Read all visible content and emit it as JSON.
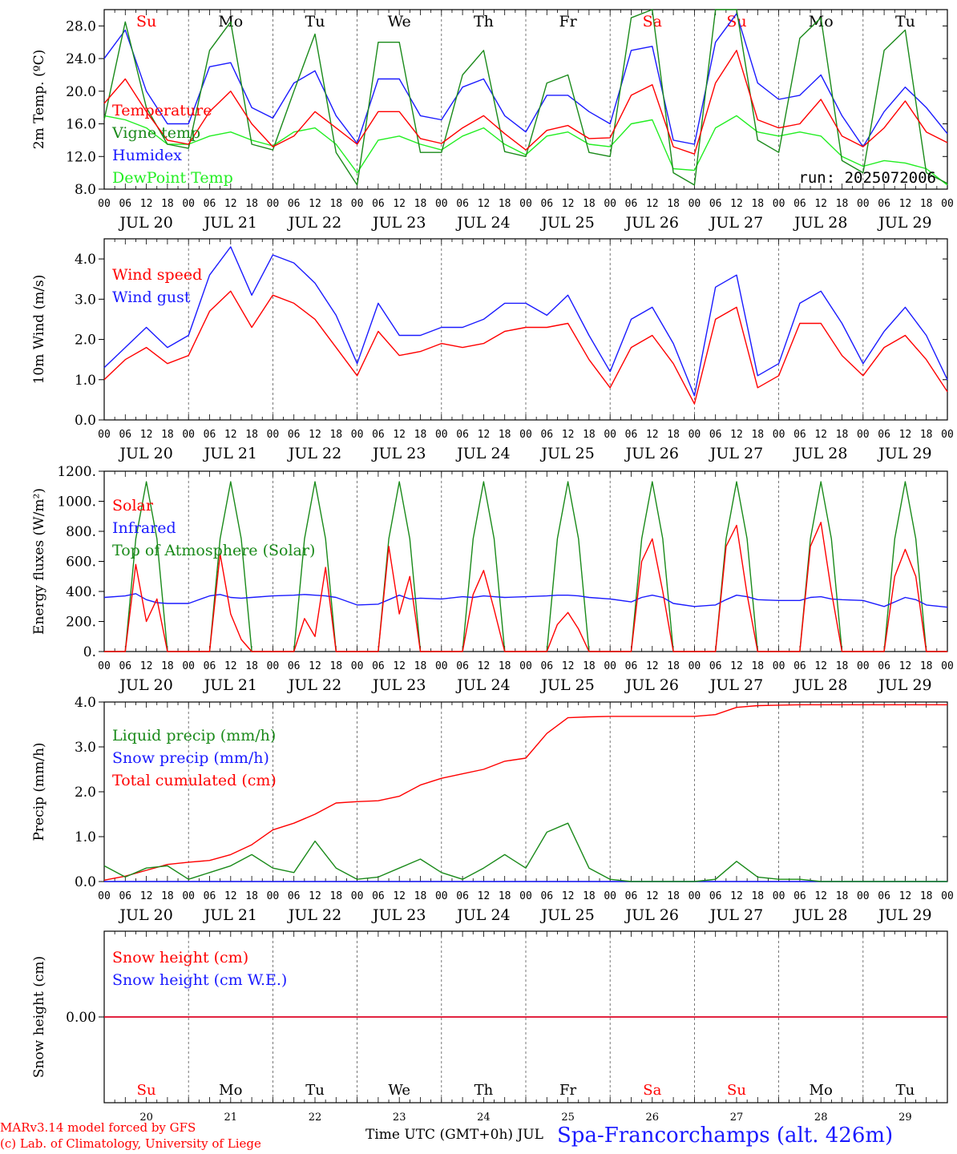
{
  "colors": {
    "red": "#ff0000",
    "green": "#1a8a1a",
    "blue": "#1a1aff",
    "lightgreen": "#22ee22",
    "axis": "#000000",
    "grid": "#555555"
  },
  "footer": {
    "model_line1": "MARv3.14 model forced by GFS",
    "model_line2": "(c) Lab. of Climatology, University of Liege",
    "time_label": "Time UTC (GMT+0h) JUL",
    "station": "Spa-Francorchamps (alt. 426m)"
  },
  "days": [
    {
      "date": "JUL 20",
      "num": "20",
      "weekday": "Su",
      "weekend": true
    },
    {
      "date": "JUL 21",
      "num": "21",
      "weekday": "Mo",
      "weekend": false
    },
    {
      "date": "JUL 22",
      "num": "22",
      "weekday": "Tu",
      "weekend": false
    },
    {
      "date": "JUL 23",
      "num": "23",
      "weekday": "We",
      "weekend": false
    },
    {
      "date": "JUL 24",
      "num": "24",
      "weekday": "Th",
      "weekend": false
    },
    {
      "date": "JUL 25",
      "num": "25",
      "weekday": "Fr",
      "weekend": false
    },
    {
      "date": "JUL 26",
      "num": "26",
      "weekday": "Sa",
      "weekend": true
    },
    {
      "date": "JUL 27",
      "num": "27",
      "weekday": "Su",
      "weekend": true
    },
    {
      "date": "JUL 28",
      "num": "28",
      "weekday": "Mo",
      "weekend": false
    },
    {
      "date": "JUL 29",
      "num": "29",
      "weekday": "Tu",
      "weekend": false
    }
  ],
  "hour_ticks": [
    "00",
    "06",
    "12",
    "18"
  ],
  "chart_data": [
    {
      "type": "line",
      "id": "temp",
      "ylabel": "2m Temp. (ºC)",
      "ylim": [
        8,
        30
      ],
      "yticks": [
        "8.0",
        "12.0",
        "16.0",
        "20.0",
        "24.0",
        "28.0"
      ],
      "annotation": "run: 2025072006",
      "x_hours": [
        0,
        6,
        12,
        18,
        24,
        30,
        36,
        42,
        48,
        54,
        60,
        66,
        72,
        78,
        84,
        90,
        96,
        102,
        108,
        114,
        120,
        126,
        132,
        138,
        144,
        150,
        156,
        162,
        168,
        174,
        180,
        186,
        192,
        198,
        204,
        210,
        216,
        222,
        228,
        234,
        240
      ],
      "series": [
        {
          "name": "Temperature",
          "color": "red",
          "values": [
            18.5,
            21.5,
            17.5,
            14,
            13.5,
            17.5,
            20,
            16,
            13.2,
            14.5,
            17.5,
            15.5,
            13.5,
            17.5,
            17.5,
            14.2,
            13.6,
            15.5,
            17,
            14.8,
            12.8,
            15.2,
            15.8,
            14.2,
            14.3,
            19.5,
            20.8,
            13.2,
            12.3,
            21,
            25,
            16.5,
            15.5,
            16,
            19,
            14.5,
            13.2,
            15.5,
            18.8,
            15,
            13.7
          ]
        },
        {
          "name": "Vigne temp",
          "color": "green",
          "values": [
            16.5,
            28.5,
            18,
            13.5,
            13,
            25,
            28.5,
            13.5,
            12.8,
            20,
            27,
            12.5,
            8.5,
            26,
            26,
            12.5,
            12.5,
            22,
            25,
            12.6,
            12,
            21,
            22,
            12.5,
            12,
            29,
            30,
            10,
            8.5,
            30,
            30,
            14,
            12.5,
            26.5,
            29,
            11.5,
            10,
            25,
            27.5,
            10,
            8.7
          ]
        },
        {
          "name": "Humidex",
          "color": "blue",
          "values": [
            24,
            27.5,
            20,
            16,
            16,
            23,
            23.5,
            18,
            16.7,
            21,
            22.5,
            17,
            13.6,
            21.5,
            21.5,
            17,
            16.5,
            20.5,
            21.5,
            17,
            15,
            19.5,
            19.5,
            17.5,
            16,
            25,
            25.5,
            14,
            13.5,
            26,
            29.5,
            21,
            19,
            19.5,
            22,
            17,
            13.2,
            17.5,
            20.5,
            18,
            14.8
          ]
        },
        {
          "name": "DewPoint Temp",
          "color": "lightgreen",
          "values": [
            17,
            16.5,
            15.5,
            13.5,
            13.5,
            14.5,
            15,
            14,
            13.3,
            15,
            15.5,
            13.5,
            10,
            14,
            14.5,
            13.5,
            12.8,
            14.5,
            15.5,
            13.5,
            12.2,
            14.5,
            15,
            13.5,
            13.2,
            16,
            16.5,
            10.5,
            10.3,
            15.5,
            17,
            15,
            14.5,
            15,
            14.5,
            12,
            10.8,
            11.5,
            11.2,
            10.5,
            8.5
          ]
        }
      ]
    },
    {
      "type": "line",
      "id": "wind",
      "ylabel": "10m Wind (m/s)",
      "ylim": [
        0,
        4.5
      ],
      "yticks": [
        "0.0",
        "1.0",
        "2.0",
        "3.0",
        "4.0"
      ],
      "x_hours": [
        0,
        6,
        12,
        18,
        24,
        30,
        36,
        42,
        48,
        54,
        60,
        66,
        72,
        78,
        84,
        90,
        96,
        102,
        108,
        114,
        120,
        126,
        132,
        138,
        144,
        150,
        156,
        162,
        168,
        174,
        180,
        186,
        192,
        198,
        204,
        210,
        216,
        222,
        228,
        234,
        240
      ],
      "series": [
        {
          "name": "Wind speed",
          "color": "red",
          "values": [
            1,
            1.5,
            1.8,
            1.4,
            1.6,
            2.7,
            3.2,
            2.3,
            3.1,
            2.9,
            2.5,
            1.8,
            1.1,
            2.2,
            1.6,
            1.7,
            1.9,
            1.8,
            1.9,
            2.2,
            2.3,
            2.3,
            2.4,
            1.5,
            0.8,
            1.8,
            2.1,
            1.4,
            0.4,
            2.5,
            2.8,
            0.8,
            1.1,
            2.4,
            2.4,
            1.6,
            1.1,
            1.8,
            2.1,
            1.5,
            0.7
          ]
        },
        {
          "name": "Wind gust",
          "color": "blue",
          "values": [
            1.3,
            1.8,
            2.3,
            1.8,
            2.1,
            3.6,
            4.3,
            3.1,
            4.1,
            3.9,
            3.4,
            2.6,
            1.4,
            2.9,
            2.1,
            2.1,
            2.3,
            2.3,
            2.5,
            2.9,
            2.9,
            2.6,
            3.1,
            2.1,
            1.2,
            2.5,
            2.8,
            1.9,
            0.6,
            3.3,
            3.6,
            1.1,
            1.4,
            2.9,
            3.2,
            2.4,
            1.4,
            2.2,
            2.8,
            2.1,
            1
          ]
        }
      ]
    },
    {
      "type": "line",
      "id": "energy",
      "ylabel": "Energy fluxes (W/m²)",
      "ylim": [
        0,
        1200
      ],
      "yticks": [
        "0.",
        "200.",
        "400.",
        "600.",
        "800.",
        "1000.",
        "1200."
      ],
      "x_hours": [
        0,
        6,
        9,
        12,
        15,
        18,
        24,
        30,
        33,
        36,
        39,
        42,
        48,
        54,
        57,
        60,
        63,
        66,
        72,
        78,
        81,
        84,
        87,
        90,
        96,
        102,
        105,
        108,
        111,
        114,
        120,
        126,
        129,
        132,
        135,
        138,
        144,
        150,
        153,
        156,
        159,
        162,
        168,
        174,
        177,
        180,
        183,
        186,
        192,
        198,
        201,
        204,
        207,
        210,
        216,
        222,
        225,
        228,
        231,
        234,
        240
      ],
      "series": [
        {
          "name": "Solar",
          "color": "red",
          "values": [
            0,
            0,
            580,
            200,
            350,
            0,
            0,
            0,
            650,
            250,
            80,
            0,
            0,
            0,
            220,
            100,
            560,
            0,
            0,
            0,
            700,
            250,
            500,
            0,
            0,
            0,
            380,
            540,
            280,
            0,
            0,
            0,
            180,
            260,
            150,
            0,
            0,
            0,
            600,
            750,
            400,
            0,
            0,
            0,
            700,
            840,
            380,
            0,
            0,
            0,
            700,
            860,
            400,
            0,
            0,
            0,
            500,
            680,
            500,
            0,
            0
          ]
        },
        {
          "name": "Infrared",
          "color": "blue",
          "values": [
            360,
            370,
            385,
            345,
            325,
            320,
            320,
            370,
            380,
            360,
            355,
            360,
            370,
            375,
            380,
            375,
            370,
            360,
            310,
            315,
            345,
            375,
            350,
            355,
            350,
            365,
            360,
            370,
            365,
            360,
            365,
            370,
            375,
            375,
            370,
            360,
            350,
            330,
            360,
            375,
            360,
            320,
            300,
            310,
            345,
            375,
            365,
            345,
            340,
            340,
            360,
            365,
            350,
            345,
            340,
            300,
            330,
            360,
            345,
            310,
            295
          ]
        },
        {
          "name": "Top of Atmosphere (Solar)",
          "color": "green",
          "values": [
            0,
            0,
            750,
            1130,
            750,
            0,
            0,
            0,
            750,
            1130,
            750,
            0,
            0,
            0,
            750,
            1130,
            750,
            0,
            0,
            0,
            750,
            1130,
            750,
            0,
            0,
            0,
            750,
            1130,
            750,
            0,
            0,
            0,
            750,
            1130,
            750,
            0,
            0,
            0,
            750,
            1130,
            750,
            0,
            0,
            0,
            750,
            1130,
            750,
            0,
            0,
            0,
            750,
            1130,
            750,
            0,
            0,
            0,
            750,
            1130,
            750,
            0,
            0
          ]
        }
      ]
    },
    {
      "type": "line",
      "id": "precip",
      "ylabel": "Precip (mm/h)",
      "ylim": [
        0,
        4
      ],
      "yticks": [
        "0.0",
        "1.0",
        "2.0",
        "3.0",
        "4.0"
      ],
      "x_hours": [
        0,
        6,
        12,
        18,
        24,
        30,
        36,
        42,
        48,
        54,
        60,
        66,
        72,
        78,
        84,
        90,
        96,
        102,
        108,
        114,
        120,
        126,
        132,
        138,
        144,
        150,
        156,
        162,
        168,
        174,
        180,
        186,
        192,
        198,
        204,
        210,
        216,
        222,
        228,
        234,
        240
      ],
      "series": [
        {
          "name": "Liquid precip (mm/h)",
          "color": "green",
          "values": [
            0.35,
            0.1,
            0.3,
            0.35,
            0.05,
            0.2,
            0.35,
            0.6,
            0.3,
            0.2,
            0.9,
            0.3,
            0.05,
            0.1,
            0.3,
            0.5,
            0.2,
            0.05,
            0.3,
            0.6,
            0.3,
            1.1,
            1.3,
            0.3,
            0.05,
            0,
            0,
            0,
            0,
            0.05,
            0.45,
            0.1,
            0.05,
            0.05,
            0,
            0,
            0,
            0,
            0,
            0,
            0
          ]
        },
        {
          "name": "Snow precip (mm/h)",
          "color": "blue",
          "values": [
            0,
            0,
            0,
            0,
            0,
            0,
            0,
            0,
            0,
            0,
            0,
            0,
            0,
            0,
            0,
            0,
            0,
            0,
            0,
            0,
            0,
            0,
            0,
            0,
            0,
            0,
            0,
            0,
            0,
            0,
            0,
            0,
            0,
            0,
            0,
            0,
            0,
            0,
            0,
            0,
            0
          ]
        },
        {
          "name": "Total cumulated (cm)",
          "color": "red",
          "values": [
            0.03,
            0.12,
            0.25,
            0.38,
            0.43,
            0.47,
            0.6,
            0.82,
            1.15,
            1.3,
            1.5,
            1.75,
            1.78,
            1.8,
            1.9,
            2.15,
            2.3,
            2.4,
            2.5,
            2.68,
            2.75,
            3.3,
            3.65,
            3.67,
            3.68,
            3.68,
            3.68,
            3.68,
            3.68,
            3.72,
            3.88,
            3.92,
            3.93,
            3.94,
            3.94,
            3.94,
            3.94,
            3.94,
            3.94,
            3.94,
            3.94
          ]
        }
      ]
    },
    {
      "type": "line",
      "id": "snow",
      "ylabel": "Snow height (cm)",
      "ylim": [
        -1,
        1
      ],
      "yticks": [
        "0.00"
      ],
      "x_hours": [
        0,
        240
      ],
      "series": [
        {
          "name": "Snow height (cm)",
          "color": "red",
          "values": [
            0,
            0
          ]
        },
        {
          "name": "Snow height (cm W.E.)",
          "color": "blue",
          "values": [
            0,
            0
          ]
        }
      ]
    }
  ]
}
